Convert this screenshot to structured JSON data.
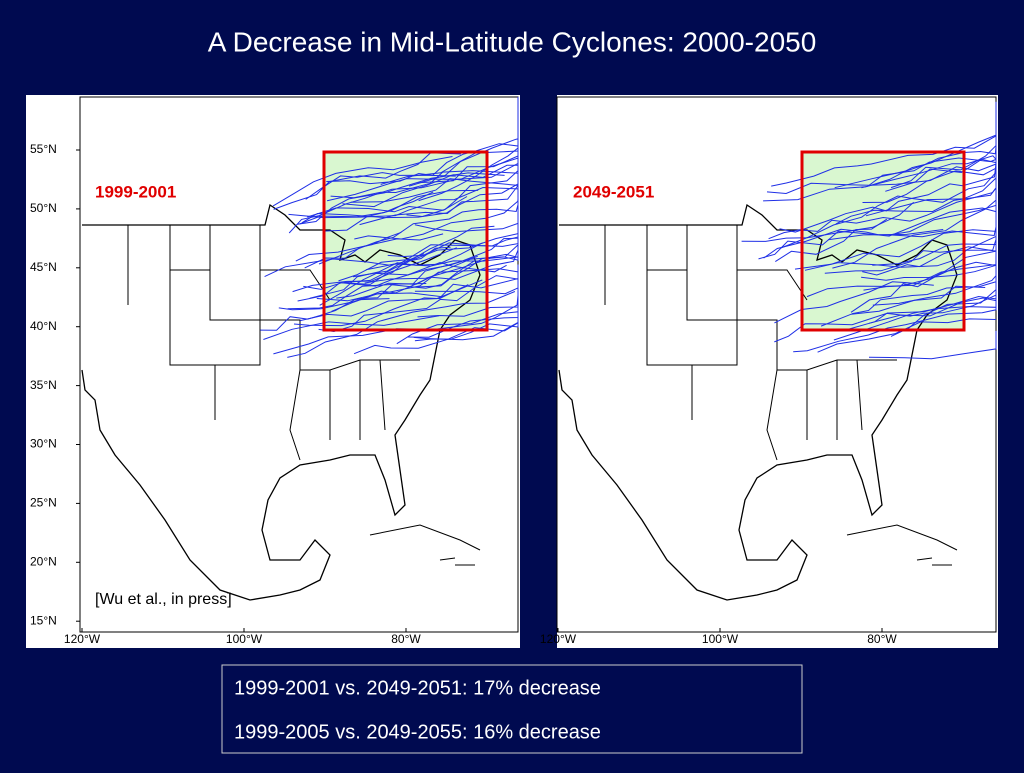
{
  "title": "A Decrease in Mid-Latitude Cyclones: 2000-2050",
  "panels": [
    {
      "label": "1999-2001",
      "lat_labels": [
        "55°N",
        "50°N",
        "45°N",
        "40°N",
        "35°N",
        "30°N",
        "25°N",
        "20°N",
        "15°N"
      ],
      "lon_labels": [
        "120°W",
        "100°W",
        "80°W"
      ],
      "citation": "[Wu et al., in press]"
    },
    {
      "label": "2049-2051",
      "lon_labels": [
        "120°W",
        "100°W",
        "80°W"
      ]
    }
  ],
  "summary": [
    "1999-2001 vs. 2049-2051: 17% decrease",
    "1999-2005 vs. 2049-2055: 16% decrease"
  ]
}
